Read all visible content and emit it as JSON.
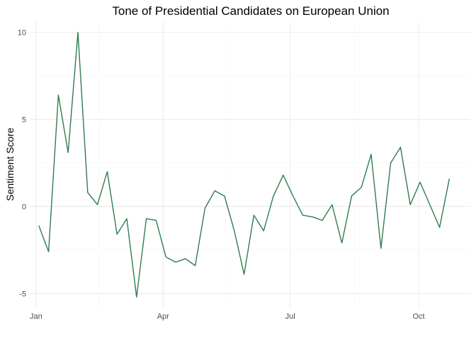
{
  "chart_data": {
    "type": "line",
    "title": "Tone of Presidential Candidates on European Union",
    "xlabel": "",
    "ylabel": "Sentiment Score",
    "x_ticks": [
      "Jan",
      "Apr",
      "Jul",
      "Oct"
    ],
    "y_ticks": [
      "-5",
      "0",
      "5",
      "10"
    ],
    "xlim": [
      "2015-12-28",
      "2016-11-07"
    ],
    "ylim": [
      -5.8,
      10.6
    ],
    "grid": true,
    "line_color": "#2e7d4f",
    "series": [
      {
        "x": [
          "2016-01-03",
          "2016-01-10",
          "2016-01-17",
          "2016-01-24",
          "2016-01-31",
          "2016-02-07",
          "2016-02-14",
          "2016-02-21",
          "2016-02-28",
          "2016-03-06",
          "2016-03-13",
          "2016-03-20",
          "2016-03-27",
          "2016-04-03",
          "2016-04-10",
          "2016-04-17",
          "2016-04-24",
          "2016-05-01",
          "2016-05-08",
          "2016-05-15",
          "2016-05-22",
          "2016-05-29",
          "2016-06-05",
          "2016-06-12",
          "2016-06-19",
          "2016-06-26",
          "2016-07-03",
          "2016-07-10",
          "2016-07-17",
          "2016-07-24",
          "2016-07-31",
          "2016-08-07",
          "2016-08-14",
          "2016-08-21",
          "2016-08-28",
          "2016-09-04",
          "2016-09-11",
          "2016-09-18",
          "2016-09-25",
          "2016-10-02",
          "2016-10-09",
          "2016-10-16",
          "2016-10-23"
        ],
        "values": [
          -1.1,
          -2.6,
          6.4,
          3.1,
          10.0,
          0.8,
          0.1,
          2.0,
          -1.6,
          -0.7,
          -5.2,
          -0.7,
          -0.8,
          -2.9,
          -3.2,
          -3.0,
          -3.4,
          -0.1,
          0.9,
          0.6,
          -1.4,
          -3.9,
          -0.5,
          -1.4,
          0.6,
          1.8,
          0.6,
          -0.5,
          -0.6,
          -0.8,
          0.1,
          -2.1,
          0.6,
          1.1,
          3.0,
          -2.4,
          2.5,
          3.4,
          0.1,
          1.4,
          0.1,
          -1.2,
          1.6
        ]
      }
    ]
  }
}
